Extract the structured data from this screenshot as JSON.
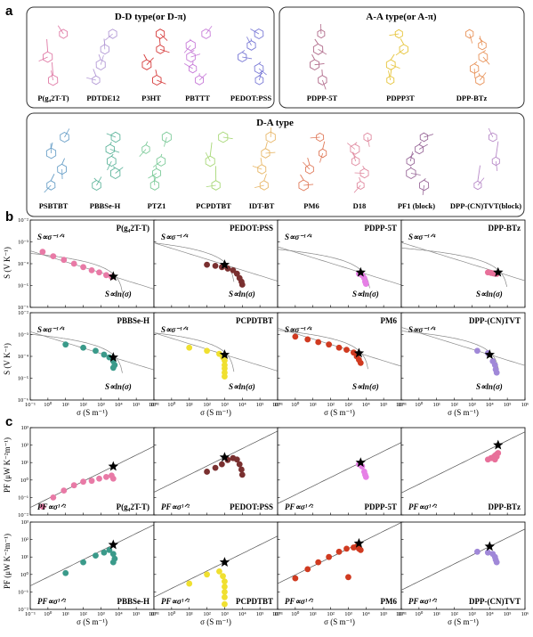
{
  "panel_labels": {
    "a": "a",
    "b": "b",
    "c": "c"
  },
  "groups": [
    {
      "title": "D-D type(or D-π)",
      "molecules": [
        {
          "name": "P(g₄2T-T)",
          "color": "#e07aa6"
        },
        {
          "name": "PDTDE12",
          "color": "#b49bd6"
        },
        {
          "name": "P3HT",
          "color": "#d63b3b"
        },
        {
          "name": "PBTTT",
          "color": "#c77bd8"
        },
        {
          "name": "PEDOT:PSS",
          "color": "#7a7ad6"
        }
      ]
    },
    {
      "title": "A-A type(or A-π)",
      "molecules": [
        {
          "name": "PDPP-5T",
          "color": "#b06a8a"
        },
        {
          "name": "PDPP3T",
          "color": "#e6c43a"
        },
        {
          "name": "DPP-BTz",
          "color": "#e8935a"
        }
      ]
    },
    {
      "title": "D-A type",
      "molecules": [
        {
          "name": "PSBTBT",
          "color": "#6aa0c8"
        },
        {
          "name": "PBBSe-H",
          "color": "#5fb59c"
        },
        {
          "name": "PTZ1",
          "color": "#7ecb9a"
        },
        {
          "name": "PCPDTBT",
          "color": "#a8d878"
        },
        {
          "name": "IDT-BT",
          "color": "#e8b86a"
        },
        {
          "name": "PM6",
          "color": "#e07a5a"
        },
        {
          "name": "D18",
          "color": "#e08aa0"
        },
        {
          "name": "PF1 (block)",
          "color": "#9a6a9a"
        },
        {
          "name": "DPP-(CN)TVT(block)",
          "color": "#b88ac8"
        }
      ]
    }
  ],
  "axis_labels": {
    "b_y": "S (V K⁻¹)",
    "c_y": "PF (μW K⁻²m⁻¹)",
    "x": "σ (S m⁻¹)"
  },
  "annotations": {
    "power": "S∝σ⁻¹ᐟ⁴",
    "log": "S∝ln(σ)",
    "pf": "PF∝σ¹ᐟ²"
  },
  "chart_data": [
    {
      "type": "scatter",
      "panel": "b",
      "x_scale": "log",
      "y_scale": "log",
      "xlim": [
        0.1,
        1000000
      ],
      "ylim": [
        1e-06,
        0.01
      ],
      "x_ticks": [
        "10⁻¹",
        "10⁰",
        "10¹",
        "10²",
        "10³",
        "10⁴",
        "10⁵",
        "10⁶"
      ],
      "y_ticks": [
        "10⁻⁶",
        "10⁻⁵",
        "10⁻⁴",
        "10⁻³",
        "10⁻²"
      ],
      "subplots": [
        {
          "title": "P(g₄2T-T)",
          "color": "#e87aa6",
          "points": [
            [
              0.5,
              0.00035
            ],
            [
              2,
              0.00022
            ],
            [
              8,
              0.00015
            ],
            [
              30,
              0.0001
            ],
            [
              100,
              7e-05
            ],
            [
              300,
              5e-05
            ],
            [
              800,
              4e-05
            ],
            [
              2000,
              3e-05
            ],
            [
              4000,
              2.5e-05
            ]
          ],
          "star": [
            5000,
            2.6e-05
          ]
        },
        {
          "title": "PEDOT:PSS",
          "color": "#7a3030",
          "points": [
            [
              100,
              9e-05
            ],
            [
              300,
              8e-05
            ],
            [
              700,
              7e-05
            ],
            [
              1500,
              6e-05
            ],
            [
              3000,
              5e-05
            ],
            [
              5000,
              3.5e-05
            ],
            [
              7000,
              2.2e-05
            ],
            [
              9000,
              1.5e-05
            ],
            [
              10000,
              1.1e-05
            ]
          ],
          "star": [
            1000,
            9e-05
          ]
        },
        {
          "title": "PDPP-5T",
          "color": "#e680e6",
          "points": [
            [
              4000,
              3.5e-05
            ],
            [
              6000,
              3e-05
            ],
            [
              8000,
              2.2e-05
            ],
            [
              9000,
              1.5e-05
            ],
            [
              10000,
              1.2e-05
            ]
          ],
          "star": [
            5000,
            4e-05
          ]
        },
        {
          "title": "DPP-BTz",
          "color": "#e8709a",
          "points": [
            [
              8000,
              4e-05
            ],
            [
              12000,
              3.8e-05
            ],
            [
              16000,
              3.6e-05
            ],
            [
              20000,
              3.5e-05
            ],
            [
              25000,
              3.4e-05
            ]
          ],
          "star": [
            30000,
            4e-05
          ]
        },
        {
          "title": "PBBSe-H",
          "color": "#3a9a8a",
          "points": [
            [
              10,
              0.00035
            ],
            [
              100,
              0.00025
            ],
            [
              500,
              0.00018
            ],
            [
              1500,
              0.00012
            ],
            [
              3000,
              9e-05
            ],
            [
              5000,
              6e-05
            ],
            [
              6000,
              4e-05
            ],
            [
              5000,
              3e-05
            ]
          ],
          "star": [
            5000,
            9e-05
          ]
        },
        {
          "title": "PCPDTBT",
          "color": "#f0e030",
          "points": [
            [
              10,
              0.00025
            ],
            [
              100,
              0.00018
            ],
            [
              500,
              0.00013
            ],
            [
              800,
              9e-05
            ],
            [
              1000,
              6.5e-05
            ],
            [
              1000,
              4e-05
            ],
            [
              1000,
              2.8e-05
            ],
            [
              1000,
              1.8e-05
            ],
            [
              1000,
              1.2e-05
            ]
          ],
          "star": [
            1000,
            0.00012
          ]
        },
        {
          "title": "PM6",
          "color": "#d03a20",
          "points": [
            [
              1,
              0.0008
            ],
            [
              5,
              0.0006
            ],
            [
              20,
              0.00045
            ],
            [
              80,
              0.00035
            ],
            [
              300,
              0.00025
            ],
            [
              800,
              0.0002
            ],
            [
              2000,
              0.00015
            ],
            [
              3000,
              0.0001
            ],
            [
              4000,
              7e-05
            ],
            [
              5000,
              5e-05
            ]
          ],
          "star": [
            4000,
            0.00014
          ]
        },
        {
          "title": "DPP-(CN)TVT",
          "color": "#a088d8",
          "points": [
            [
              2000,
              0.00018
            ],
            [
              8000,
              0.00014
            ],
            [
              15000,
              6e-05
            ],
            [
              20000,
              4e-05
            ],
            [
              22000,
              2.5e-05
            ],
            [
              25000,
              1.8e-05
            ]
          ],
          "star": [
            10000,
            0.00012
          ]
        }
      ]
    },
    {
      "type": "scatter",
      "panel": "c",
      "x_scale": "log",
      "y_scale": "log",
      "xlim": [
        0.1,
        1000000
      ],
      "ylim": [
        0.01,
        1000
      ],
      "x_ticks": [
        "10⁻¹",
        "10⁰",
        "10¹",
        "10²",
        "10³",
        "10⁴",
        "10⁵",
        "10⁶"
      ],
      "y_ticks": [
        "10⁻²",
        "10⁻¹",
        "10⁰",
        "10¹",
        "10²",
        "10³"
      ],
      "subplots": [
        {
          "title": "P(g₄2T-T)",
          "color": "#e87aa6",
          "points": [
            [
              0.5,
              0.03
            ],
            [
              2,
              0.1
            ],
            [
              8,
              0.25
            ],
            [
              30,
              0.5
            ],
            [
              100,
              0.8
            ],
            [
              300,
              0.9
            ],
            [
              800,
              1.2
            ],
            [
              2000,
              1.5
            ],
            [
              4000,
              1.8
            ],
            [
              5000,
              1.2
            ]
          ],
          "star": [
            5000,
            6
          ]
        },
        {
          "title": "PEDOT:PSS",
          "color": "#7a3030",
          "points": [
            [
              100,
              3
            ],
            [
              300,
              5
            ],
            [
              700,
              8
            ],
            [
              1500,
              14
            ],
            [
              3000,
              18
            ],
            [
              5000,
              15
            ],
            [
              7000,
              8
            ],
            [
              9000,
              4
            ],
            [
              10000,
              2
            ]
          ],
          "star": [
            1000,
            20
          ]
        },
        {
          "title": "PDPP-5T",
          "color": "#e680e6",
          "points": [
            [
              4000,
              8
            ],
            [
              6000,
              6
            ],
            [
              8000,
              3
            ],
            [
              9000,
              2
            ],
            [
              10000,
              1.5
            ]
          ],
          "star": [
            5000,
            10
          ]
        },
        {
          "title": "DPP-BTz",
          "color": "#e8709a",
          "points": [
            [
              8000,
              15
            ],
            [
              12000,
              18
            ],
            [
              16000,
              20
            ],
            [
              20000,
              25
            ],
            [
              25000,
              30
            ],
            [
              30000,
              35
            ],
            [
              25000,
              22
            ],
            [
              20000,
              15
            ]
          ],
          "star": [
            30000,
            100
          ]
        },
        {
          "title": "PBBSe-H",
          "color": "#3a9a8a",
          "points": [
            [
              10,
              1.2
            ],
            [
              100,
              5
            ],
            [
              500,
              12
            ],
            [
              1500,
              18
            ],
            [
              3000,
              25
            ],
            [
              5000,
              15
            ],
            [
              6000,
              8
            ],
            [
              5000,
              5
            ]
          ],
          "star": [
            5000,
            50
          ]
        },
        {
          "title": "PCPDTBT",
          "color": "#f0e030",
          "points": [
            [
              10,
              0.3
            ],
            [
              100,
              1
            ],
            [
              500,
              1.5
            ],
            [
              800,
              0.8
            ],
            [
              1000,
              0.4
            ],
            [
              1000,
              0.2
            ],
            [
              1000,
              0.1
            ],
            [
              1000,
              0.05
            ],
            [
              1000,
              0.02
            ]
          ],
          "star": [
            1000,
            5
          ]
        },
        {
          "title": "PM6",
          "color": "#d03a20",
          "points": [
            [
              1,
              0.6
            ],
            [
              5,
              2
            ],
            [
              20,
              5
            ],
            [
              80,
              10
            ],
            [
              300,
              20
            ],
            [
              800,
              30
            ],
            [
              2000,
              35
            ],
            [
              3000,
              40
            ],
            [
              4000,
              30
            ],
            [
              5000,
              25
            ],
            [
              1000,
              0.7
            ]
          ],
          "star": [
            4000,
            60
          ]
        },
        {
          "title": "DPP-(CN)TVT",
          "color": "#a088d8",
          "points": [
            [
              2000,
              20
            ],
            [
              8000,
              18
            ],
            [
              15000,
              15
            ],
            [
              20000,
              10
            ],
            [
              22000,
              7
            ],
            [
              25000,
              5
            ]
          ],
          "star": [
            10000,
            40
          ]
        }
      ]
    }
  ]
}
